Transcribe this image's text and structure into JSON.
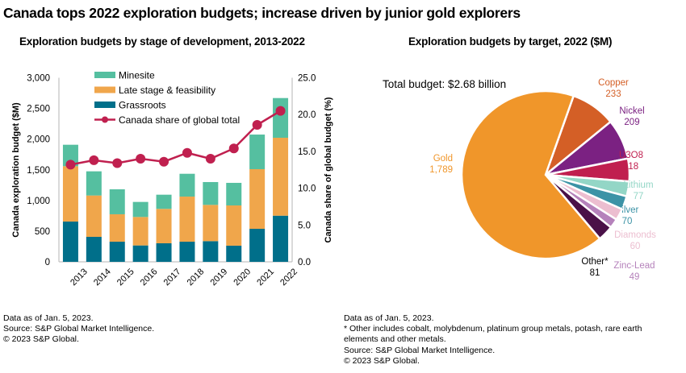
{
  "title": "Canada tops 2022 exploration budgets; increase driven by junior gold explorers",
  "chart_data": [
    {
      "type": "bar",
      "stacked": true,
      "title": "Exploration budgets by stage of development, 2013-2022",
      "categories": [
        "2013",
        "2014",
        "2015",
        "2016",
        "2017",
        "2018",
        "2019",
        "2020",
        "2021",
        "2022"
      ],
      "series": [
        {
          "name": "Grassroots",
          "color": "#006f8a",
          "values": [
            656,
            407,
            328,
            267,
            302,
            328,
            337,
            263,
            538,
            752
          ]
        },
        {
          "name": "Late stage & feasibility",
          "color": "#f0a64b",
          "values": [
            902,
            674,
            447,
            464,
            561,
            735,
            591,
            656,
            972,
            1270
          ]
        },
        {
          "name": "Minesite",
          "color": "#55bfa0",
          "values": [
            350,
            394,
            407,
            245,
            231,
            372,
            372,
            368,
            564,
            647
          ]
        }
      ],
      "line_series": {
        "name": "Canada share of global total",
        "color": "#c0204f",
        "axis": "right",
        "values": [
          13.2,
          13.8,
          13.4,
          14.0,
          13.6,
          14.8,
          14.0,
          15.4,
          18.6,
          20.5
        ]
      },
      "legend_order": [
        "Minesite",
        "Late stage & feasibility",
        "Grassroots",
        "Canada share of global total"
      ],
      "legend": "top-center",
      "ylabel": "Canada exploration budget ($M)",
      "ylim": [
        0,
        3000
      ],
      "yticks": [
        "0",
        "500",
        "1,000",
        "1,500",
        "2,000",
        "2,500",
        "3,000"
      ],
      "y2label": "Canada share of global budget (%)",
      "y2lim": [
        0,
        25
      ],
      "y2ticks": [
        "0.0",
        "5.0",
        "10.0",
        "15.0",
        "20.0",
        "25.0"
      ],
      "grid": false
    },
    {
      "type": "pie",
      "title": "Exploration budgets by target, 2022 ($M)",
      "annotation": "Total budget: $2.68 billion",
      "slices": [
        {
          "label": "Copper",
          "value": 233,
          "value_label": "233",
          "color": "#d45f26"
        },
        {
          "label": "Nickel",
          "value": 209,
          "value_label": "209",
          "color": "#7b2182"
        },
        {
          "label": "U3O8",
          "value": 118,
          "value_label": "118",
          "color": "#c01f4f"
        },
        {
          "label": "Lithium",
          "value": 77,
          "value_label": "77",
          "color": "#93d6c6"
        },
        {
          "label": "Silver",
          "value": 70,
          "value_label": "70",
          "color": "#3c93a6"
        },
        {
          "label": "Diamonds",
          "value": 60,
          "value_label": "60",
          "color": "#ecbed0"
        },
        {
          "label": "Zinc-Lead",
          "value": 49,
          "value_label": "49",
          "color": "#b582bb"
        },
        {
          "label": "Other*",
          "value": 81,
          "value_label": "81",
          "color": "#4a1148",
          "label_color": "#000000"
        },
        {
          "label": "Gold",
          "value": 1789,
          "value_label": "1,789",
          "color": "#f0962a"
        }
      ]
    }
  ],
  "notes": {
    "left": [
      "Data as of Jan. 5, 2023.",
      "Source: S&P Global Market Intelligence.",
      "© 2023 S&P Global."
    ],
    "right": [
      "Data as of Jan. 5, 2023.",
      "* Other includes cobalt, molybdenum, platinum group metals, potash, rare earth",
      "elements and other metals.",
      "Source: S&P Global Market Intelligence.",
      "© 2023 S&P Global."
    ]
  }
}
